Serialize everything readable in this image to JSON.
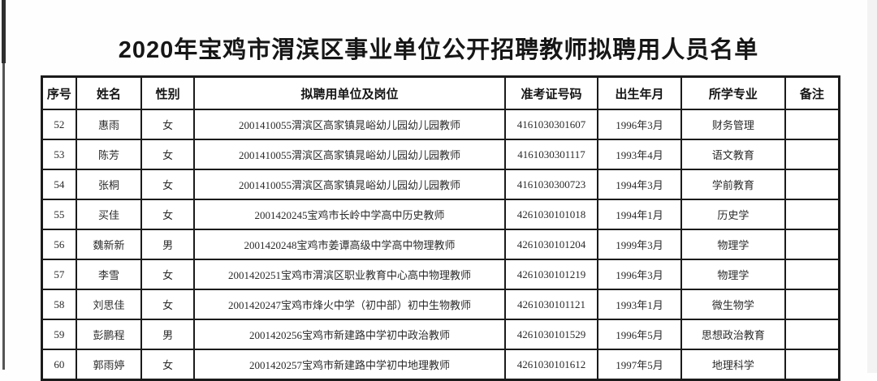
{
  "page": {
    "title": "2020年宝鸡市渭滨区事业单位公开招聘教师拟聘用人员名单"
  },
  "table": {
    "columns": [
      {
        "label": "序号"
      },
      {
        "label": "姓名"
      },
      {
        "label": "性别"
      },
      {
        "label": "拟聘用单位及岗位"
      },
      {
        "label": "准考证号码"
      },
      {
        "label": "出生年月"
      },
      {
        "label": "所学专业"
      },
      {
        "label": "备注"
      }
    ],
    "rows": [
      {
        "index": "52",
        "name": "惠雨",
        "gender": "女",
        "unit": "2001410055渭滨区高家镇晁峪幼儿园幼儿园教师",
        "ticket": "4161030301607",
        "birth": "1996年3月",
        "major": "财务管理",
        "note": ""
      },
      {
        "index": "53",
        "name": "陈芳",
        "gender": "女",
        "unit": "2001410055渭滨区高家镇晁峪幼儿园幼儿园教师",
        "ticket": "4161030301117",
        "birth": "1993年4月",
        "major": "语文教育",
        "note": ""
      },
      {
        "index": "54",
        "name": "张桐",
        "gender": "女",
        "unit": "2001410055渭滨区高家镇晁峪幼儿园幼儿园教师",
        "ticket": "4161030300723",
        "birth": "1994年3月",
        "major": "学前教育",
        "note": ""
      },
      {
        "index": "55",
        "name": "买佳",
        "gender": "女",
        "unit": "2001420245宝鸡市长岭中学高中历史教师",
        "ticket": "4261030101018",
        "birth": "1994年1月",
        "major": "历史学",
        "note": ""
      },
      {
        "index": "56",
        "name": "魏新新",
        "gender": "男",
        "unit": "2001420248宝鸡市姜谭高级中学高中物理教师",
        "ticket": "4261030101204",
        "birth": "1999年3月",
        "major": "物理学",
        "note": ""
      },
      {
        "index": "57",
        "name": "李雪",
        "gender": "女",
        "unit": "2001420251宝鸡市渭滨区职业教育中心高中物理教师",
        "ticket": "4261030101219",
        "birth": "1996年3月",
        "major": "物理学",
        "note": ""
      },
      {
        "index": "58",
        "name": "刘思佳",
        "gender": "女",
        "unit": "2001420247宝鸡市烽火中学（初中部）初中生物教师",
        "ticket": "4261030101121",
        "birth": "1993年1月",
        "major": "微生物学",
        "note": ""
      },
      {
        "index": "59",
        "name": "彭鹏程",
        "gender": "男",
        "unit": "2001420256宝鸡市新建路中学初中政治教师",
        "ticket": "4261030101529",
        "birth": "1996年5月",
        "major": "思想政治教育",
        "note": ""
      },
      {
        "index": "60",
        "name": "郭雨婷",
        "gender": "女",
        "unit": "2001420257宝鸡市新建路中学初中地理教师",
        "ticket": "4261030101612",
        "birth": "1997年5月",
        "major": "地理科学",
        "note": ""
      }
    ]
  }
}
